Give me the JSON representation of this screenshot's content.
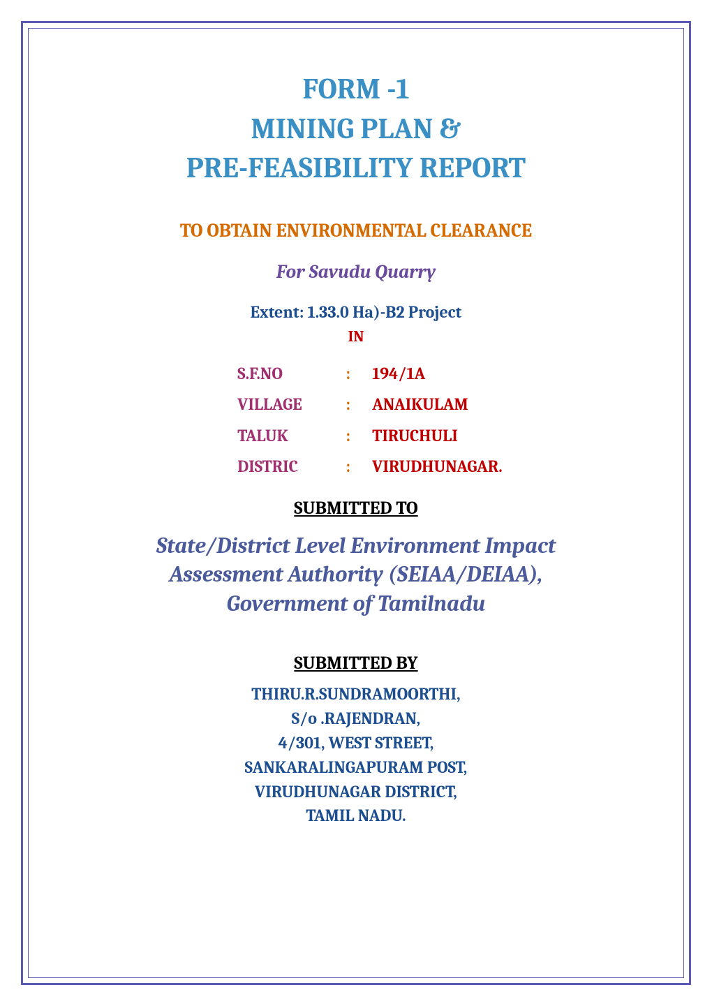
{
  "title": {
    "line1": "FORM -1",
    "line2": "MINING PLAN &",
    "line3": "PRE-FEASIBILITY REPORT",
    "color": "#3a90c5",
    "fontsize": 42
  },
  "subtitle": {
    "text": "TO OBTAIN ENVIRONMENTAL CLEARANCE",
    "color": "#d46a00",
    "fontsize": 27
  },
  "quarry": {
    "text": "For Savudu Quarry",
    "color": "#6a4a9c",
    "fontsize": 27
  },
  "extent": {
    "text": "Extent: 1.33.0 Ha)-B2 Project",
    "color": "#1d4e8f",
    "fontsize": 24
  },
  "in_label": {
    "text": "IN",
    "color": "#c00000",
    "fontsize": 22
  },
  "location": {
    "label_color": "#a03070",
    "colon_color": "#d46a00",
    "value_color": "#c00000",
    "fontsize": 24,
    "rows": [
      {
        "label": "S.F.NO",
        "value": "194/1A"
      },
      {
        "label": "VILLAGE",
        "value": "ANAIKULAM"
      },
      {
        "label": "TALUK",
        "value": "TIRUCHULI"
      },
      {
        "label": "DISTRIC",
        "value": "VIRUDHUNAGAR."
      }
    ]
  },
  "submitted_to": {
    "text": "SUBMITTED TO",
    "color": "#000000",
    "fontsize": 26
  },
  "authority": {
    "line1": "State/District Level Environment Impact",
    "line2": "Assessment Authority (SEIAA/DEIAA),",
    "line3": "Government of Tamilnadu",
    "color": "#4a5a9a",
    "fontsize": 32
  },
  "submitted_by": {
    "text": "SUBMITTED BY",
    "color": "#000000",
    "fontsize": 26
  },
  "applicant": {
    "line1": "THIRU.R.SUNDRAMOORTHI,",
    "line2": "S/o .RAJENDRAN,",
    "line3": "4/301, WEST STREET,",
    "line4": "SANKARALINGAPURAM POST,",
    "line5": "VIRUDHUNAGAR DISTRICT,",
    "line6": "TAMIL NADU.",
    "color": "#1d4e8f",
    "fontsize": 24
  },
  "border_color": "#5b5bb0",
  "background_color": "#ffffff"
}
